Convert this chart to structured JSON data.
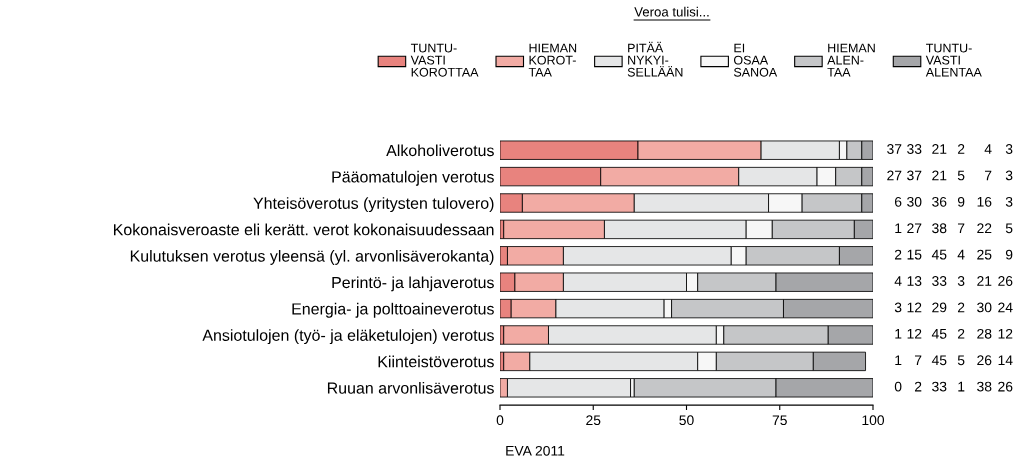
{
  "chart_data": {
    "type": "bar",
    "orientation": "horizontal",
    "stacked": true,
    "legend": "top",
    "legend_title": "Veroa tulisi...",
    "data_labels": true,
    "grid": false,
    "categories": [
      "Alkoholiverotus",
      "Pääomatulojen verotus",
      "Yhteisöverotus (yritysten tulovero)",
      "Kokonaisveroaste eli kerätt. verot kokonaisuudessaan",
      "Kulutuksen verotus yleensä (yl. arvonlisäverokanta)",
      "Perintö- ja lahjaverotus",
      "Energia- ja polttoaineverotus",
      "Ansiotulojen (työ- ja eläketulojen) verotus",
      "Kiinteistöverotus",
      "Ruuan arvonlisäverotus"
    ],
    "xlim": [
      0,
      100
    ],
    "xticks": [
      0,
      25,
      50,
      75,
      100
    ],
    "series": [
      {
        "name": "TUNTU-\nVASTI\nKOROTTAA",
        "color": "#e8837e",
        "values": [
          37,
          27,
          6,
          1,
          2,
          4,
          3,
          1,
          1,
          0
        ]
      },
      {
        "name": "HIEMAN\nKOROT-\nTAA",
        "color": "#f2aba4",
        "values": [
          33,
          37,
          30,
          27,
          15,
          13,
          12,
          12,
          7,
          2
        ]
      },
      {
        "name": "PITÄÄ\nNYKYI-\nSELLÄÄN",
        "color": "#e5e6e7",
        "values": [
          21,
          21,
          36,
          38,
          45,
          33,
          29,
          45,
          45,
          33
        ]
      },
      {
        "name": "EI\nOSAA\nSANOA",
        "color": "#f7f7f7",
        "values": [
          2,
          5,
          9,
          7,
          4,
          3,
          2,
          2,
          5,
          1
        ]
      },
      {
        "name": "HIEMAN\nALEN-\nTAA",
        "color": "#c5c6c8",
        "values": [
          4,
          7,
          16,
          22,
          25,
          21,
          30,
          28,
          26,
          38
        ]
      },
      {
        "name": "TUNTU-\nVASTI\nALENTAA",
        "color": "#a5a6a9",
        "values": [
          3,
          3,
          3,
          5,
          9,
          26,
          24,
          12,
          14,
          26
        ]
      }
    ],
    "annotations": [
      "EVA 2011"
    ]
  }
}
